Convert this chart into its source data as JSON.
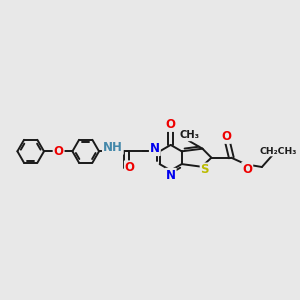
{
  "bg_color": "#e8e8e8",
  "bond_color": "#1a1a1a",
  "bond_width": 1.4,
  "atom_colors": {
    "N": "#0000ee",
    "O": "#ee0000",
    "S": "#bbbb00",
    "C": "#1a1a1a",
    "H": "#4488aa"
  },
  "fig_w": 3.0,
  "fig_h": 3.0,
  "dpi": 100,
  "xlim": [
    0,
    10.5
  ],
  "ylim": [
    -1.5,
    4.0
  ]
}
